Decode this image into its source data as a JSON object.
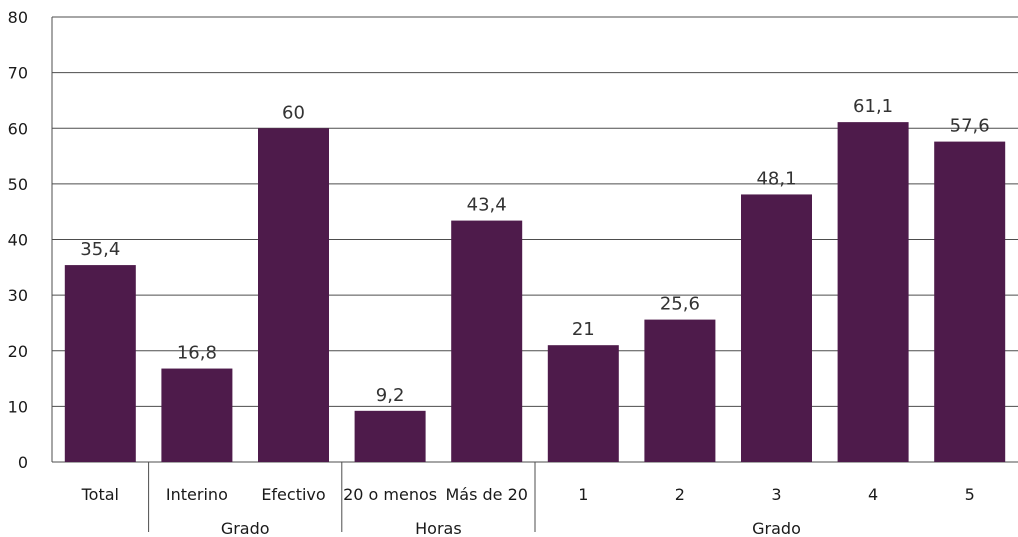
{
  "chart_data": {
    "type": "bar",
    "title": "",
    "xlabel": "",
    "ylabel": "",
    "ylim": [
      0,
      80
    ],
    "yticks": [
      "0",
      "10",
      "20",
      "30",
      "40",
      "50",
      "60",
      "70",
      "80"
    ],
    "grid": true,
    "categories": [
      "Total",
      "Interino",
      "Efectivo",
      "20 o menos",
      "Más de 20",
      "1",
      "2",
      "3",
      "4",
      "5"
    ],
    "values": [
      35.4,
      16.8,
      60,
      9.2,
      43.4,
      21,
      25.6,
      48.1,
      61.1,
      57.6
    ],
    "value_labels": [
      "35,4",
      "16,8",
      "60",
      "9,2",
      "43,4",
      "21",
      "25,6",
      "48,1",
      "61,1",
      "57,6"
    ],
    "groups": [
      {
        "label": "",
        "start": 0,
        "end": 0
      },
      {
        "label": "Grado",
        "start": 1,
        "end": 2
      },
      {
        "label": "Horas",
        "start": 3,
        "end": 4
      },
      {
        "label": "Grado",
        "start": 5,
        "end": 9
      }
    ],
    "bar_color": "#4e1b4b"
  }
}
